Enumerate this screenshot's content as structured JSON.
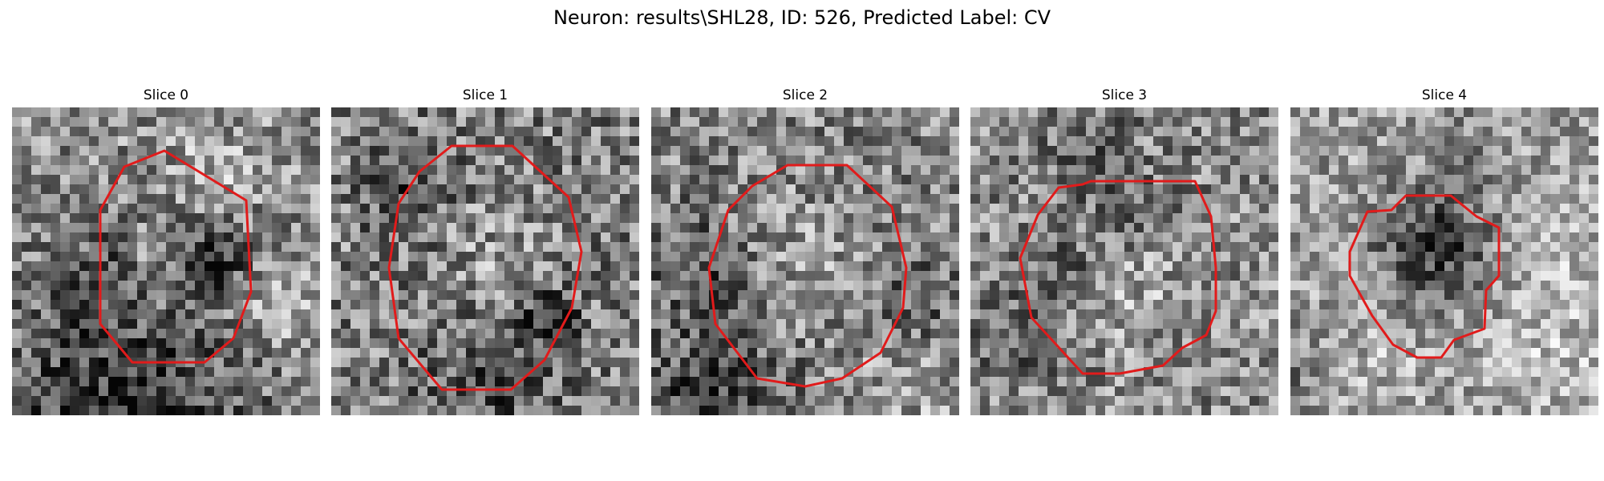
{
  "figure": {
    "title": "Neuron: results\\SHL28, ID: 526, Predicted Label: CV"
  },
  "colors": {
    "contour": "#e11b1b",
    "background": "#ffffff"
  },
  "panels": [
    {
      "title": "Slice 0"
    },
    {
      "title": "Slice 1"
    },
    {
      "title": "Slice 2"
    },
    {
      "title": "Slice 3"
    },
    {
      "title": "Slice 4"
    }
  ]
}
